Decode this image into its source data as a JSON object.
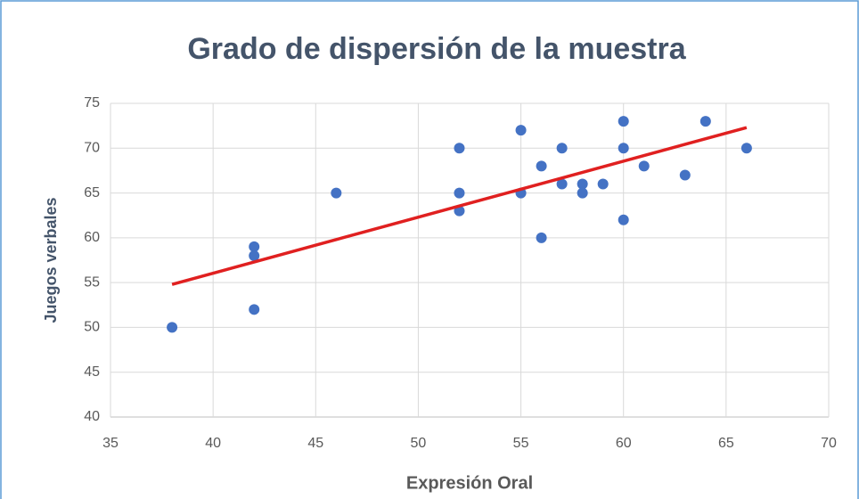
{
  "chart_data": {
    "type": "scatter",
    "title": "Grado de dispersión de la muestra",
    "x_label": "Expresión Oral",
    "y_label": "Juegos verbales",
    "series": [
      {
        "color": "#4472c4",
        "x": [
          38,
          42,
          42,
          42,
          46,
          52,
          52,
          52,
          55,
          55,
          56,
          56,
          57,
          57,
          58,
          58,
          59,
          60,
          60,
          60,
          61,
          63,
          64,
          66
        ],
        "values": [
          50,
          59,
          58,
          52,
          65,
          70,
          65,
          63,
          72,
          65,
          68,
          60,
          70,
          66,
          66,
          65,
          66,
          73,
          70,
          62,
          68,
          67,
          73,
          70
        ]
      }
    ],
    "trendline": {
      "color": "#e02020",
      "x": [
        38,
        66
      ],
      "y": [
        54.8,
        72.3
      ]
    },
    "xlim": [
      35,
      70
    ],
    "xticks": [
      35,
      40,
      45,
      50,
      55,
      60,
      65,
      70
    ],
    "ylim": [
      40,
      75
    ],
    "yticks": [
      40,
      45,
      50,
      55,
      60,
      65,
      70,
      75
    ],
    "grid": true
  }
}
